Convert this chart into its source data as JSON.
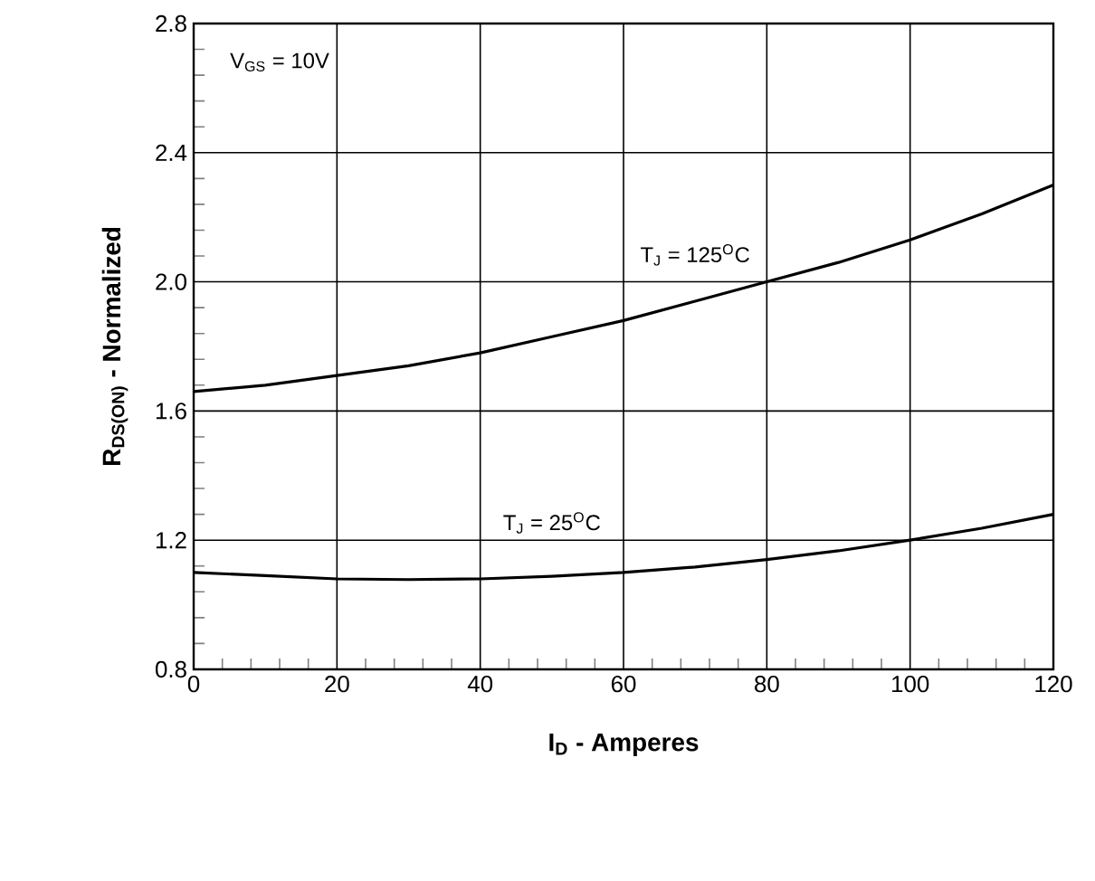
{
  "chart_data": {
    "type": "line",
    "xlabel": "**I$_{D}$ - Amperes**",
    "ylabel": "**R$_{DS(ON)}$ - Normalized**",
    "annotations": [
      "V$_{GS}$ = 10V"
    ],
    "x": [
      0,
      10,
      20,
      30,
      40,
      50,
      60,
      70,
      80,
      90,
      100,
      110,
      120
    ],
    "series": [
      {
        "name": "T$_{J}$ = 125$^{O}$C",
        "color": "#000000",
        "values": [
          1.66,
          1.68,
          1.71,
          1.74,
          1.78,
          1.83,
          1.88,
          1.94,
          2.0,
          2.06,
          2.13,
          2.21,
          2.3
        ]
      },
      {
        "name": "T$_{J}$ = 25$^{O}$C",
        "color": "#000000",
        "values": [
          1.1,
          1.09,
          1.08,
          1.078,
          1.08,
          1.088,
          1.1,
          1.117,
          1.14,
          1.167,
          1.2,
          1.237,
          1.28
        ]
      }
    ],
    "xlim": [
      0,
      120
    ],
    "ylim": [
      0.8,
      2.8
    ],
    "xticks": [
      0,
      20,
      40,
      60,
      80,
      100,
      120
    ],
    "yticks": [
      0.8,
      1.2,
      1.6,
      {
        "value": 2.0,
        "label": "2.0"
      },
      2.4,
      2.8
    ],
    "grid": true,
    "marker": "none",
    "line_style": "solid"
  }
}
